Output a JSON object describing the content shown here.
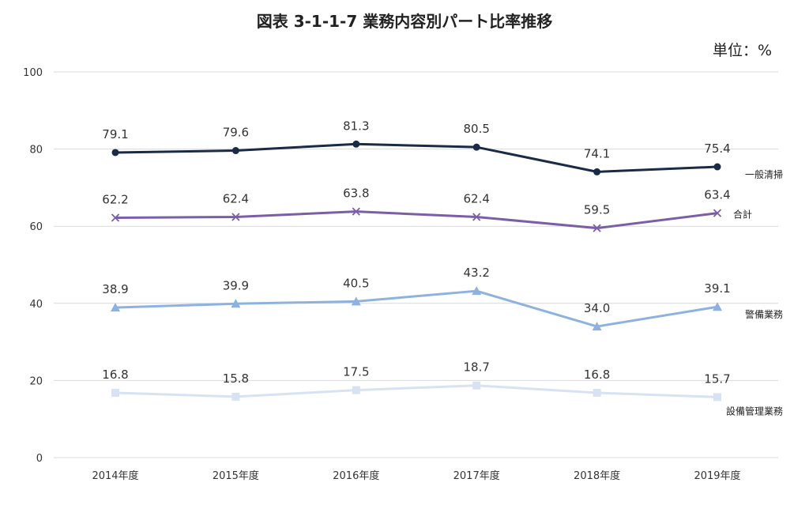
{
  "chart_data": {
    "type": "line",
    "title": "図表 3-1-1-7 業務内容別パート比率推移",
    "unit": "単位：%",
    "categories": [
      "2014年度",
      "2015年度",
      "2016年度",
      "2017年度",
      "2018年度",
      "2019年度"
    ],
    "ylim": [
      0,
      100
    ],
    "yticks": [
      "0",
      "20",
      "40",
      "60",
      "80",
      "100"
    ],
    "grid": true,
    "legend": "series labels at right end of lines",
    "series": [
      {
        "name": "一般清掃",
        "marker": "circle",
        "color": "#1b2a45",
        "values": [
          79.1,
          79.6,
          81.3,
          80.5,
          74.1,
          75.4
        ],
        "labels": [
          "79.1",
          "79.6",
          "81.3",
          "80.5",
          "74.1",
          "75.4"
        ]
      },
      {
        "name": "合計",
        "marker": "x",
        "color": "#7b5ea7",
        "values": [
          62.2,
          62.4,
          63.8,
          62.4,
          59.5,
          63.4
        ],
        "labels": [
          "62.2",
          "62.4",
          "63.8",
          "62.4",
          "59.5",
          "63.4"
        ]
      },
      {
        "name": "警備業務",
        "marker": "triangle",
        "color": "#8eb2df",
        "values": [
          38.9,
          39.9,
          40.5,
          43.2,
          34.0,
          39.1
        ],
        "labels": [
          "38.9",
          "39.9",
          "40.5",
          "43.2",
          "34.0",
          "39.1"
        ]
      },
      {
        "name": "設備管理業務",
        "marker": "square",
        "color": "#d7e3f2",
        "values": [
          16.8,
          15.8,
          17.5,
          18.7,
          16.8,
          15.7
        ],
        "labels": [
          "16.8",
          "15.8",
          "17.5",
          "18.7",
          "16.8",
          "15.7"
        ]
      }
    ]
  }
}
